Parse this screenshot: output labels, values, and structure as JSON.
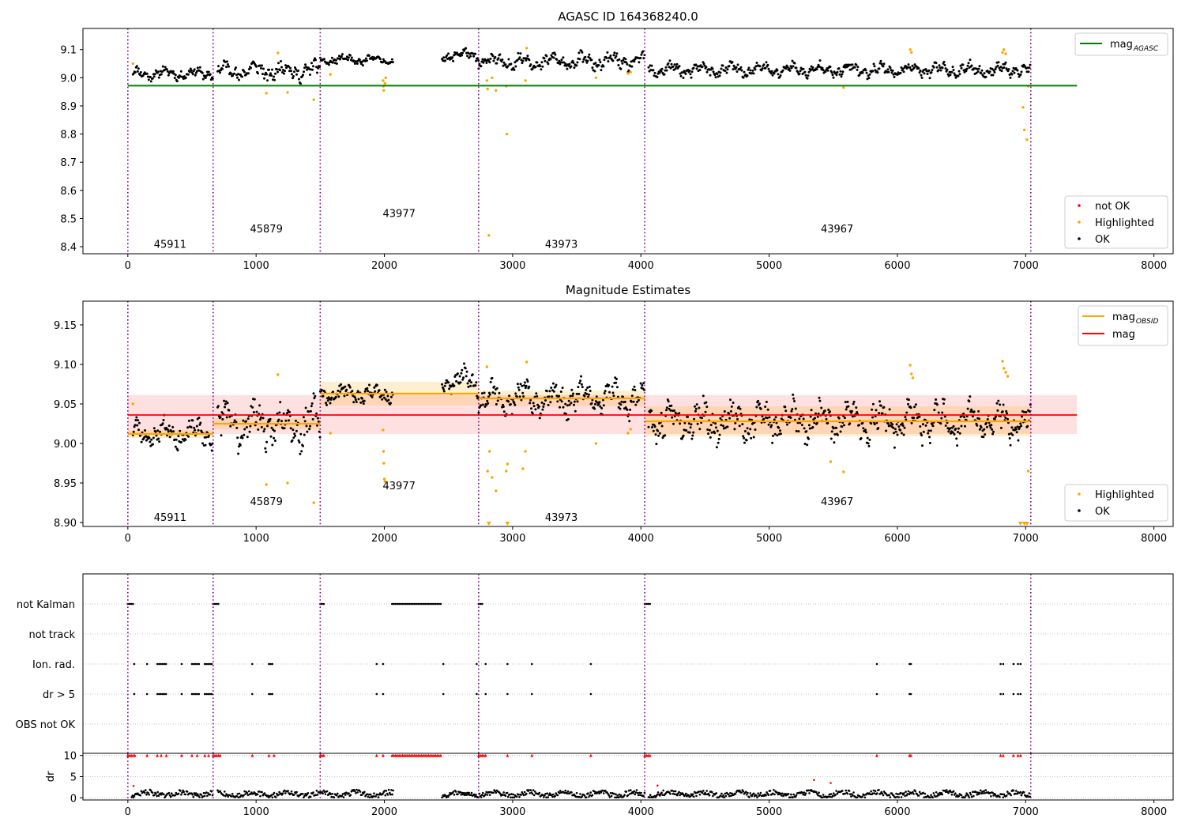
{
  "chart_data": [
    {
      "type": "scatter",
      "title": "AGASC ID 164368240.0",
      "xlim": [
        -350,
        8150
      ],
      "ylim": [
        8.375,
        9.175
      ],
      "x_ticks": [
        "0",
        "1000",
        "2000",
        "3000",
        "4000",
        "5000",
        "6000",
        "7000",
        "8000"
      ],
      "y_ticks": [
        "8.4",
        "8.5",
        "8.6",
        "8.7",
        "8.8",
        "8.9",
        "9.0",
        "9.1"
      ],
      "grid": false,
      "obs_boundaries": [
        0,
        665,
        1500,
        2735,
        4030,
        7040
      ],
      "obs_labels": [
        {
          "text": "45911",
          "x": 330,
          "y": 8.41
        },
        {
          "text": "45879",
          "x": 1080,
          "y": 8.465
        },
        {
          "text": "43977",
          "x": 2115,
          "y": 8.52
        },
        {
          "text": "43973",
          "x": 3380,
          "y": 8.41
        },
        {
          "text": "43967",
          "x": 5530,
          "y": 8.465
        }
      ],
      "reference_line": {
        "name": "mag",
        "subscript": "AGASC",
        "value": 8.972,
        "x_range": [
          0,
          7400
        ],
        "color": "#008000"
      },
      "ok_segments": [
        {
          "x_range": [
            40,
            665
          ],
          "base": 9.015,
          "amp": 0.025
        },
        {
          "x_range": [
            700,
            1500
          ],
          "base": 9.025,
          "amp": 0.04
        },
        {
          "x_range": [
            1500,
            2070
          ],
          "base": 9.063,
          "amp": 0.02
        },
        {
          "x_range": [
            2450,
            2735
          ],
          "base": 9.08,
          "amp": 0.025
        },
        {
          "x_range": [
            2735,
            4030
          ],
          "base": 9.057,
          "amp": 0.035
        },
        {
          "x_range": [
            4060,
            7040
          ],
          "base": 9.028,
          "amp": 0.03
        }
      ],
      "highlighted_points": [
        [
          40,
          9.05
        ],
        [
          1080,
          8.945
        ],
        [
          1170,
          9.088
        ],
        [
          1245,
          8.948
        ],
        [
          1450,
          8.922
        ],
        [
          1580,
          9.012
        ],
        [
          1990,
          8.99
        ],
        [
          1992,
          8.97
        ],
        [
          1995,
          8.955
        ],
        [
          2005,
          8.98
        ],
        [
          2010,
          9.0
        ],
        [
          2800,
          8.99
        ],
        [
          2805,
          8.96
        ],
        [
          2815,
          8.44
        ],
        [
          2840,
          9.0
        ],
        [
          2870,
          8.955
        ],
        [
          2950,
          8.97
        ],
        [
          2955,
          8.8
        ],
        [
          3100,
          8.99
        ],
        [
          3110,
          9.105
        ],
        [
          3650,
          9.0
        ],
        [
          3900,
          9.015
        ],
        [
          3920,
          9.02
        ],
        [
          5580,
          8.965
        ],
        [
          6100,
          9.1
        ],
        [
          6110,
          9.09
        ],
        [
          6820,
          9.09
        ],
        [
          6830,
          9.1
        ],
        [
          6845,
          9.085
        ],
        [
          6980,
          8.895
        ],
        [
          6990,
          8.815
        ],
        [
          7010,
          8.78
        ],
        [
          7020,
          8.97
        ]
      ],
      "legend_top": [
        {
          "name": "mag",
          "subscript": "AGASC",
          "color": "#008000",
          "kind": "line"
        }
      ],
      "legend_bottom": [
        {
          "name": "not OK",
          "color": "#ff0000",
          "kind": "marker"
        },
        {
          "name": "Highlighted",
          "color": "#ffa500",
          "kind": "marker"
        },
        {
          "name": "OK",
          "color": "#000000",
          "kind": "marker"
        }
      ],
      "legend_placement": [
        "top-right",
        "bottom-right"
      ]
    },
    {
      "type": "scatter",
      "title": "Magnitude Estimates",
      "xlim": [
        -350,
        8150
      ],
      "ylim": [
        8.895,
        9.18
      ],
      "x_ticks": [
        "0",
        "1000",
        "2000",
        "3000",
        "4000",
        "5000",
        "6000",
        "7000",
        "8000"
      ],
      "y_ticks": [
        "8.90",
        "8.95",
        "9.00",
        "9.05",
        "9.10",
        "9.15"
      ],
      "grid": false,
      "obs_boundaries": [
        0,
        665,
        1500,
        2735,
        4030,
        7040
      ],
      "obs_labels": [
        {
          "text": "45911",
          "x": 330,
          "y": 8.907
        },
        {
          "text": "45879",
          "x": 1080,
          "y": 8.927
        },
        {
          "text": "43977",
          "x": 2115,
          "y": 8.947
        },
        {
          "text": "43973",
          "x": 3380,
          "y": 8.907
        },
        {
          "text": "43967",
          "x": 5530,
          "y": 8.927
        }
      ],
      "mag_line": {
        "name": "mag",
        "value": 9.036,
        "band": [
          9.012,
          9.061
        ],
        "x_range": [
          0,
          7400
        ],
        "color": "#ff0000"
      },
      "obsid_steps": [
        {
          "x_range": [
            0,
            665
          ],
          "value": 9.012,
          "band": [
            9.007,
            9.017
          ]
        },
        {
          "x_range": [
            665,
            1500
          ],
          "value": 9.025,
          "band": [
            9.018,
            9.032
          ]
        },
        {
          "x_range": [
            1500,
            2735
          ],
          "value": 9.063,
          "band": [
            9.048,
            9.078
          ]
        },
        {
          "x_range": [
            2735,
            4030
          ],
          "value": 9.057,
          "band": [
            9.047,
            9.067
          ]
        },
        {
          "x_range": [
            4030,
            7040
          ],
          "value": 9.028,
          "band": [
            9.009,
            9.047
          ]
        }
      ],
      "ok_segments": [
        {
          "x_range": [
            40,
            665
          ],
          "base": 9.013,
          "amp": 0.02
        },
        {
          "x_range": [
            700,
            1500
          ],
          "base": 9.025,
          "amp": 0.035
        },
        {
          "x_range": [
            1500,
            2070
          ],
          "base": 9.063,
          "amp": 0.015
        },
        {
          "x_range": [
            2450,
            2735
          ],
          "base": 9.08,
          "amp": 0.02
        },
        {
          "x_range": [
            2735,
            4030
          ],
          "base": 9.057,
          "amp": 0.025
        },
        {
          "x_range": [
            4060,
            7040
          ],
          "base": 9.028,
          "amp": 0.03
        }
      ],
      "highlighted_points": [
        [
          40,
          9.05
        ],
        [
          1080,
          8.948
        ],
        [
          1170,
          9.087
        ],
        [
          1245,
          8.95
        ],
        [
          1450,
          8.925
        ],
        [
          1580,
          9.013
        ],
        [
          1990,
          9.017
        ],
        [
          1993,
          8.99
        ],
        [
          1996,
          8.975
        ],
        [
          2000,
          8.955
        ],
        [
          2005,
          8.952
        ],
        [
          2800,
          9.097
        ],
        [
          2805,
          8.965
        ],
        [
          2820,
          8.99
        ],
        [
          2840,
          8.957
        ],
        [
          2870,
          8.94
        ],
        [
          2950,
          8.965
        ],
        [
          2960,
          8.974
        ],
        [
          3080,
          8.968
        ],
        [
          3100,
          8.99
        ],
        [
          3110,
          9.103
        ],
        [
          3650,
          9.0
        ],
        [
          3900,
          9.013
        ],
        [
          3920,
          9.018
        ],
        [
          5480,
          8.977
        ],
        [
          5580,
          8.964
        ],
        [
          6100,
          9.099
        ],
        [
          6110,
          9.088
        ],
        [
          6120,
          9.083
        ],
        [
          6820,
          9.104
        ],
        [
          6830,
          9.095
        ],
        [
          6845,
          9.09
        ],
        [
          6860,
          9.085
        ],
        [
          7020,
          8.965
        ]
      ],
      "clipped_points": [
        2815,
        2960,
        6960,
        6990,
        7010
      ],
      "legend_top": [
        {
          "name": "mag",
          "subscript": "OBSID",
          "color": "#ffa500",
          "kind": "line"
        },
        {
          "name": "mag",
          "color": "#ff0000",
          "kind": "line"
        }
      ],
      "legend_bottom": [
        {
          "name": "Highlighted",
          "color": "#ffa500",
          "kind": "marker"
        },
        {
          "name": "OK",
          "color": "#000000",
          "kind": "marker"
        }
      ],
      "legend_placement": [
        "top-right",
        "bottom-right"
      ]
    },
    {
      "type": "scatter",
      "xlim": [
        -350,
        8150
      ],
      "x_ticks": [
        "0",
        "1000",
        "2000",
        "3000",
        "4000",
        "5000",
        "6000",
        "7000",
        "8000"
      ],
      "flag_rows": [
        "not Kalman",
        "not track",
        "Ion. rad.",
        "dr > 5",
        "OBS not OK"
      ],
      "grid": "horizontal dotted",
      "obs_boundaries": [
        0,
        665,
        1500,
        2735,
        4030,
        7040
      ],
      "flags": {
        "not Kalman": {
          "ranges": [
            [
              0,
              45
            ],
            [
              665,
              710
            ],
            [
              1500,
              1540
            ],
            [
              2060,
              2450
            ],
            [
              2735,
              2775
            ],
            [
              4030,
              4075
            ]
          ],
          "points": []
        },
        "not track": {
          "ranges": [],
          "points": []
        },
        "Ion. rad.": {
          "ranges": [
            [
              230,
              300
            ],
            [
              500,
              560
            ],
            [
              600,
              660
            ],
            [
              1100,
              1140
            ]
          ],
          "points": [
            50,
            150,
            420,
            970,
            1940,
            1990,
            2460,
            2720,
            2790,
            2960,
            3150,
            3610,
            5840,
            6095,
            6105,
            6805,
            6825,
            6905,
            6940,
            6960
          ]
        },
        "dr > 5": {
          "ranges": [
            [
              230,
              300
            ],
            [
              500,
              560
            ],
            [
              600,
              660
            ],
            [
              1100,
              1140
            ]
          ],
          "points": [
            50,
            150,
            420,
            970,
            1940,
            1990,
            2460,
            2720,
            2790,
            2960,
            3150,
            3610,
            5840,
            6095,
            6105,
            6805,
            6825,
            6905,
            6940,
            6960
          ]
        },
        "OBS not OK": {
          "ranges": [],
          "points": []
        }
      }
    },
    {
      "type": "scatter",
      "ylabel": "dr",
      "xlim": [
        -350,
        8150
      ],
      "ylim": [
        -0.5,
        10.5
      ],
      "x_ticks": [
        "0",
        "1000",
        "2000",
        "3000",
        "4000",
        "5000",
        "6000",
        "7000",
        "8000"
      ],
      "y_ticks": [
        "0",
        "5",
        "10"
      ],
      "grid": "horizontal dotted",
      "obs_boundaries": [
        0,
        665,
        1500,
        2735,
        4030,
        7040
      ],
      "dr_clip": 10,
      "dr_ok_ranges": [
        [
          30,
          665
        ],
        [
          700,
          2070
        ],
        [
          2450,
          4030
        ],
        [
          4060,
          7040
        ]
      ],
      "dr_clipped_ranges": [
        [
          0,
          60
        ],
        [
          665,
          720
        ],
        [
          1500,
          1540
        ],
        [
          2060,
          2450
        ],
        [
          2735,
          2800
        ],
        [
          4030,
          4075
        ]
      ],
      "dr_clipped_points": [
        150,
        230,
        260,
        300,
        420,
        500,
        540,
        600,
        630,
        970,
        1100,
        1140,
        1940,
        1990,
        2960,
        3150,
        3610,
        5840,
        6095,
        6105,
        6805,
        6825,
        6905,
        6940,
        6960
      ],
      "dr_outliers": [
        [
          45,
          2.8
        ],
        [
          4130,
          2.9
        ],
        [
          5350,
          4.2
        ],
        [
          5480,
          3.5
        ]
      ]
    }
  ]
}
